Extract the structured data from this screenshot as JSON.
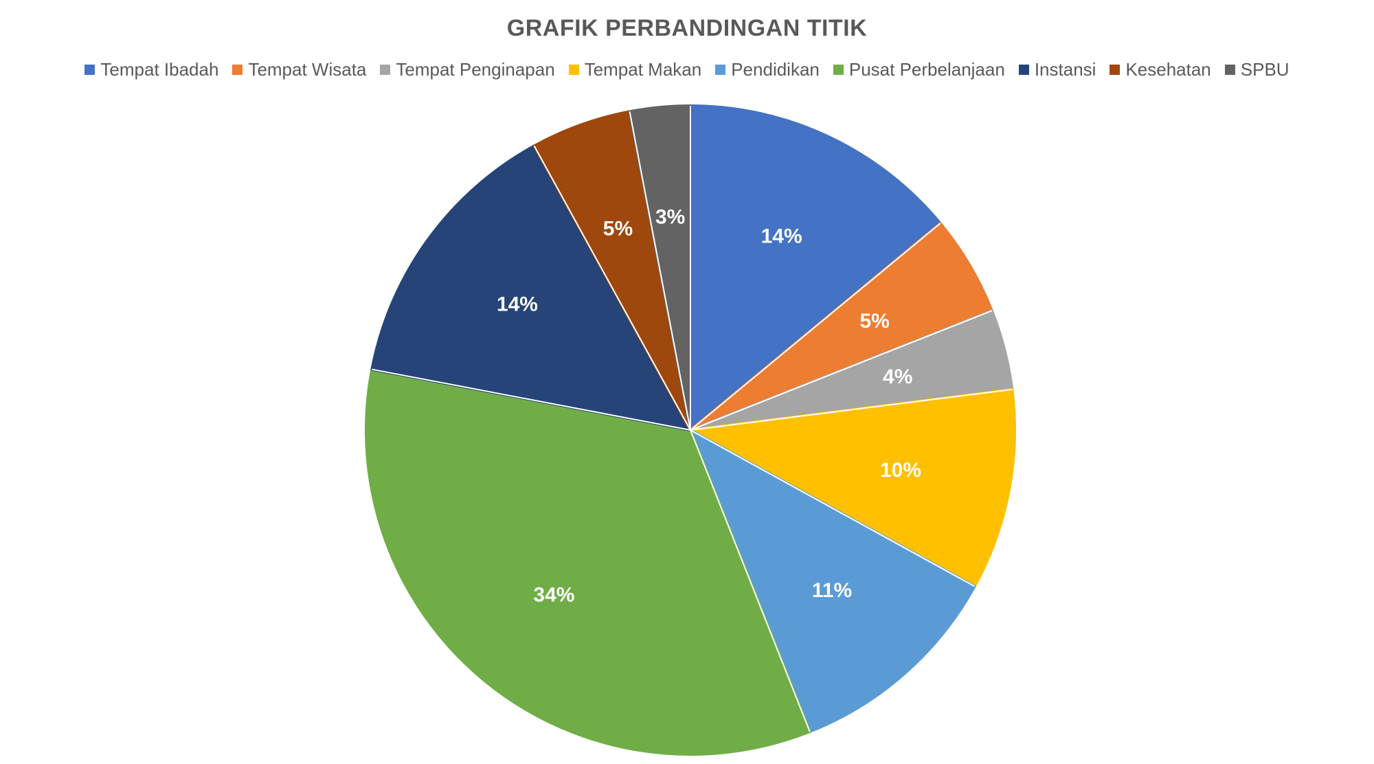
{
  "chart_data": {
    "type": "pie",
    "title": "GRAFIK PERBANDINGAN TITIK",
    "legend_position": "top",
    "slices": [
      {
        "name": "Tempat Ibadah",
        "value": 14,
        "label": "14%",
        "color": "#4472C4"
      },
      {
        "name": "Tempat Wisata",
        "value": 5,
        "label": "5%",
        "color": "#ED7D31"
      },
      {
        "name": "Tempat Penginapan",
        "value": 4,
        "label": "4%",
        "color": "#A5A5A5"
      },
      {
        "name": "Tempat Makan",
        "value": 10,
        "label": "10%",
        "color": "#FFC000"
      },
      {
        "name": "Pendidikan",
        "value": 11,
        "label": "11%",
        "color": "#5B9BD5"
      },
      {
        "name": "Pusat Perbelanjaan",
        "value": 34,
        "label": "34%",
        "color": "#70AD47"
      },
      {
        "name": "Instansi",
        "value": 14,
        "label": "14%",
        "color": "#264478"
      },
      {
        "name": "Kesehatan",
        "value": 5,
        "label": "5%",
        "color": "#9E480E"
      },
      {
        "name": "SPBU",
        "value": 3,
        "label": "3%",
        "color": "#636363"
      }
    ]
  }
}
